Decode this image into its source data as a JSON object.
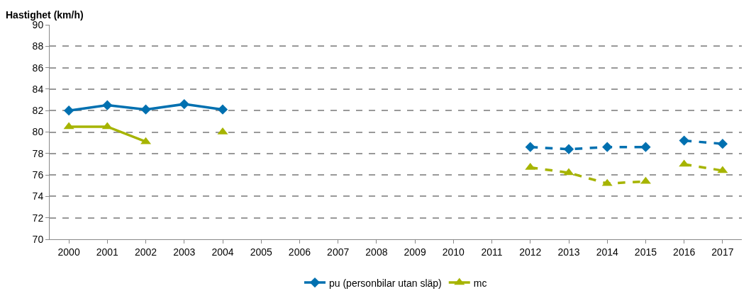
{
  "chart_data": {
    "type": "line",
    "ylabel": "Hastighet (km/h)",
    "categories": [
      "2000",
      "2001",
      "2002",
      "2003",
      "2004",
      "2005",
      "2006",
      "2007",
      "2008",
      "2009",
      "2010",
      "2011",
      "2012",
      "2013",
      "2014",
      "2015",
      "2016",
      "2017"
    ],
    "series": [
      {
        "name": "pu (personbilar utan släp)",
        "color": "#0070b0",
        "marker": "diamond",
        "line_style": "solid",
        "values": [
          82.0,
          82.5,
          82.1,
          82.6,
          82.1,
          null,
          null,
          null,
          null,
          null,
          null,
          null,
          null,
          null,
          null,
          null,
          null,
          null
        ]
      },
      {
        "name": "mc",
        "color": "#a6b400",
        "marker": "triangle",
        "line_style": "solid",
        "values": [
          80.5,
          80.5,
          79.1,
          null,
          80.0,
          null,
          null,
          null,
          null,
          null,
          null,
          null,
          null,
          null,
          null,
          null,
          null,
          null
        ]
      },
      {
        "color": "#0070b0",
        "marker": "diamond",
        "line_style": "dashed",
        "values": [
          null,
          null,
          null,
          null,
          null,
          null,
          null,
          null,
          null,
          null,
          null,
          null,
          78.6,
          78.4,
          78.6,
          78.6,
          null,
          null
        ]
      },
      {
        "color": "#0070b0",
        "marker": "diamond",
        "line_style": "dashed",
        "values": [
          null,
          null,
          null,
          null,
          null,
          null,
          null,
          null,
          null,
          null,
          null,
          null,
          null,
          null,
          null,
          null,
          79.2,
          78.9
        ]
      },
      {
        "color": "#a6b400",
        "marker": "triangle",
        "line_style": "dashed",
        "values": [
          null,
          null,
          null,
          null,
          null,
          null,
          null,
          null,
          null,
          null,
          null,
          null,
          76.7,
          76.2,
          75.2,
          75.4,
          null,
          null
        ]
      },
      {
        "color": "#a6b400",
        "marker": "triangle",
        "line_style": "dashed",
        "values": [
          null,
          null,
          null,
          null,
          null,
          null,
          null,
          null,
          null,
          null,
          null,
          null,
          null,
          null,
          null,
          null,
          77.0,
          76.4
        ]
      }
    ],
    "ylim": [
      70,
      90
    ],
    "yticks": [
      70,
      72,
      74,
      76,
      78,
      80,
      82,
      84,
      86,
      88,
      90
    ],
    "grid": "y",
    "legend": "bottom"
  }
}
